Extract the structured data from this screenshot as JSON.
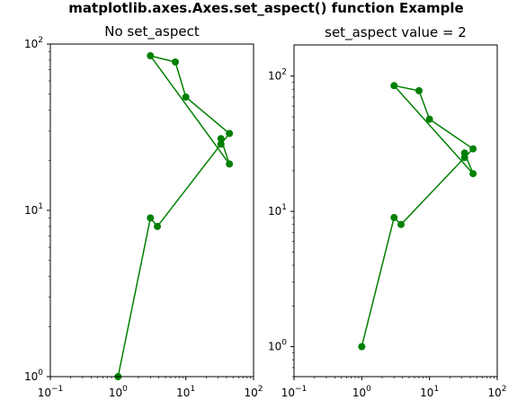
{
  "suptitle": "matplotlib.axes.Axes.set_aspect() function Example",
  "chart_data": [
    {
      "type": "line",
      "title": "No set_aspect",
      "xscale": "log",
      "yscale": "log",
      "xlim": [
        0.1,
        100
      ],
      "ylim": [
        1,
        100
      ],
      "x_ticks": [
        {
          "base": "10",
          "exp": "−1"
        },
        {
          "base": "10",
          "exp": "0"
        },
        {
          "base": "10",
          "exp": "1"
        },
        {
          "base": "10",
          "exp": "2"
        }
      ],
      "y_ticks": [
        {
          "base": "10",
          "exp": "0"
        },
        {
          "base": "10",
          "exp": "1"
        },
        {
          "base": "10",
          "exp": "2"
        }
      ],
      "series": [
        {
          "color": "#008000",
          "marker": "circle",
          "x": [
            1,
            3,
            3.8,
            33,
            44,
            10,
            7,
            3,
            44,
            33
          ],
          "y": [
            1,
            9,
            8,
            25,
            29,
            48,
            78,
            85,
            19,
            27
          ]
        }
      ]
    },
    {
      "type": "line",
      "title": "set_aspect value = 2",
      "xscale": "log",
      "yscale": "log",
      "xlim": [
        0.1,
        100
      ],
      "ylim": [
        0.6,
        170
      ],
      "x_ticks": [
        {
          "base": "10",
          "exp": "−1"
        },
        {
          "base": "10",
          "exp": "0"
        },
        {
          "base": "10",
          "exp": "1"
        },
        {
          "base": "10",
          "exp": "2"
        }
      ],
      "y_ticks": [
        {
          "base": "10",
          "exp": "0"
        },
        {
          "base": "10",
          "exp": "1"
        },
        {
          "base": "10",
          "exp": "2"
        }
      ],
      "series": [
        {
          "color": "#008000",
          "marker": "circle",
          "x": [
            1,
            3,
            3.8,
            33,
            44,
            10,
            7,
            3,
            44,
            33
          ],
          "y": [
            1,
            9,
            8,
            25,
            29,
            48,
            78,
            85,
            19,
            27
          ]
        }
      ]
    }
  ]
}
